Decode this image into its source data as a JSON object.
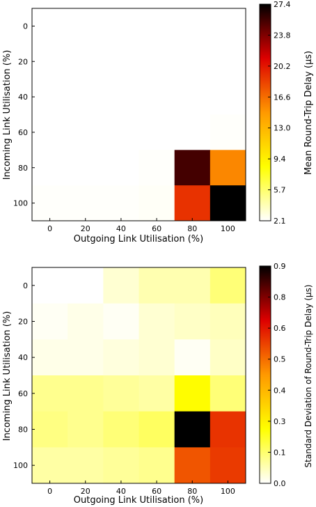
{
  "chart_data": [
    {
      "type": "heatmap",
      "x": [
        0,
        20,
        40,
        60,
        80,
        100
      ],
      "y": [
        0,
        20,
        40,
        60,
        80,
        100
      ],
      "xlabel": "Outgoing Link Utilisation (%)",
      "ylabel": "Incoming Link Utilisation (%)",
      "values": [
        [
          2.1,
          2.1,
          2.1,
          2.1,
          2.1,
          2.1
        ],
        [
          2.1,
          2.1,
          2.1,
          2.1,
          2.1,
          2.1
        ],
        [
          2.1,
          2.1,
          2.1,
          2.1,
          2.1,
          2.1
        ],
        [
          2.1,
          2.1,
          2.1,
          2.1,
          2.1,
          2.2
        ],
        [
          2.1,
          2.1,
          2.1,
          2.2,
          25.5,
          15.5
        ],
        [
          2.2,
          2.2,
          2.2,
          2.3,
          19.0,
          27.4
        ]
      ],
      "colorbar": {
        "label": "Mean Round-Trip Delay (μs)",
        "range": [
          2.1,
          27.4
        ],
        "ticks": [
          "2.1",
          "5.7",
          "9.4",
          "13.0",
          "16.6",
          "20.2",
          "23.8",
          "27.4"
        ]
      },
      "colormap": "hot_r"
    },
    {
      "type": "heatmap",
      "x": [
        0,
        20,
        40,
        60,
        80,
        100
      ],
      "y": [
        0,
        20,
        40,
        60,
        80,
        100
      ],
      "xlabel": "Outgoing Link Utilisation (%)",
      "ylabel": "Incoming Link Utilisation (%)",
      "values": [
        [
          0.0,
          0.0,
          0.04,
          0.07,
          0.07,
          0.12
        ],
        [
          0.01,
          0.02,
          0.01,
          0.04,
          0.05,
          0.06
        ],
        [
          0.02,
          0.02,
          0.03,
          0.04,
          0.01,
          0.05
        ],
        [
          0.1,
          0.1,
          0.09,
          0.08,
          0.23,
          0.12
        ],
        [
          0.11,
          0.1,
          0.12,
          0.14,
          0.9,
          0.6
        ],
        [
          0.08,
          0.08,
          0.09,
          0.1,
          0.55,
          0.59
        ]
      ],
      "colorbar": {
        "label": "Standard Deviation of Round-Trip Delay (μs)",
        "range": [
          0.0,
          0.9
        ],
        "ticks": [
          "0.0",
          "0.1",
          "0.3",
          "0.4",
          "0.5",
          "0.6",
          "0.8",
          "0.9"
        ]
      },
      "colormap": "hot_r"
    }
  ]
}
